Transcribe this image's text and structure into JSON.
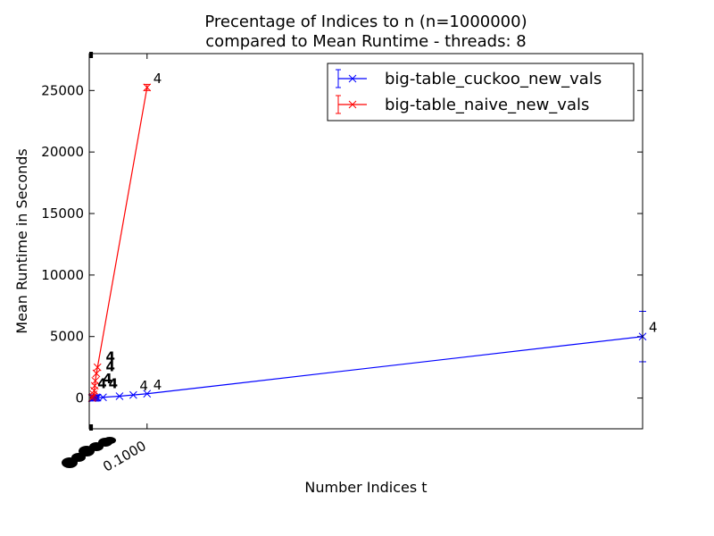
{
  "chart_data": {
    "type": "line",
    "title": [
      "Precentage of Indices to n (n=1000000)",
      "compared to Mean Runtime  - threads: 8"
    ],
    "xlabel": "Number Indices t",
    "ylabel": "Mean Runtime in Seconds",
    "xlim": [
      -0.005,
      1.0
    ],
    "ylim": [
      -2500,
      28000
    ],
    "yticks": [
      0,
      5000,
      10000,
      15000,
      20000,
      25000
    ],
    "xticks_labeled": [
      {
        "value": 0.1,
        "label": "0.1000"
      }
    ],
    "grid": false,
    "legend_position": "top-right",
    "series": [
      {
        "name": "big-table_cuckoo_new_vals",
        "color": "#0000ff",
        "x": [
          0.0,
          0.002,
          0.004,
          0.006,
          0.008,
          0.01,
          0.02,
          0.05,
          0.075,
          0.1,
          1.0
        ],
        "y": [
          0,
          5,
          10,
          15,
          20,
          30,
          60,
          150,
          250,
          350,
          5000
        ],
        "yerr": [
          0,
          0,
          0,
          0,
          0,
          0,
          0,
          0,
          0,
          0,
          2050
        ],
        "labels": [
          "",
          "",
          "",
          "",
          "",
          "",
          "",
          "",
          "4",
          "4",
          "4"
        ]
      },
      {
        "name": "big-table_naive_new_vals",
        "color": "#ff0000",
        "x": [
          0.0,
          0.002,
          0.003,
          0.004,
          0.005,
          0.006,
          0.008,
          0.01,
          0.1
        ],
        "y": [
          0,
          100,
          300,
          600,
          1000,
          1400,
          2000,
          2500,
          25250
        ],
        "yerr": [
          0,
          0,
          0,
          0,
          0,
          0,
          0,
          0,
          250
        ],
        "labels": [
          "",
          "",
          "",
          "",
          "",
          "",
          "",
          "",
          "4"
        ]
      }
    ],
    "point_labels_cluster": [
      {
        "x": 0.025,
        "y": 3000,
        "label": "4"
      },
      {
        "x": 0.025,
        "y": 2200,
        "label": "4"
      },
      {
        "x": 0.02,
        "y": 1200,
        "label": "4"
      },
      {
        "x": 0.03,
        "y": 800,
        "label": "4"
      },
      {
        "x": 0.01,
        "y": 800,
        "label": "4"
      }
    ]
  }
}
